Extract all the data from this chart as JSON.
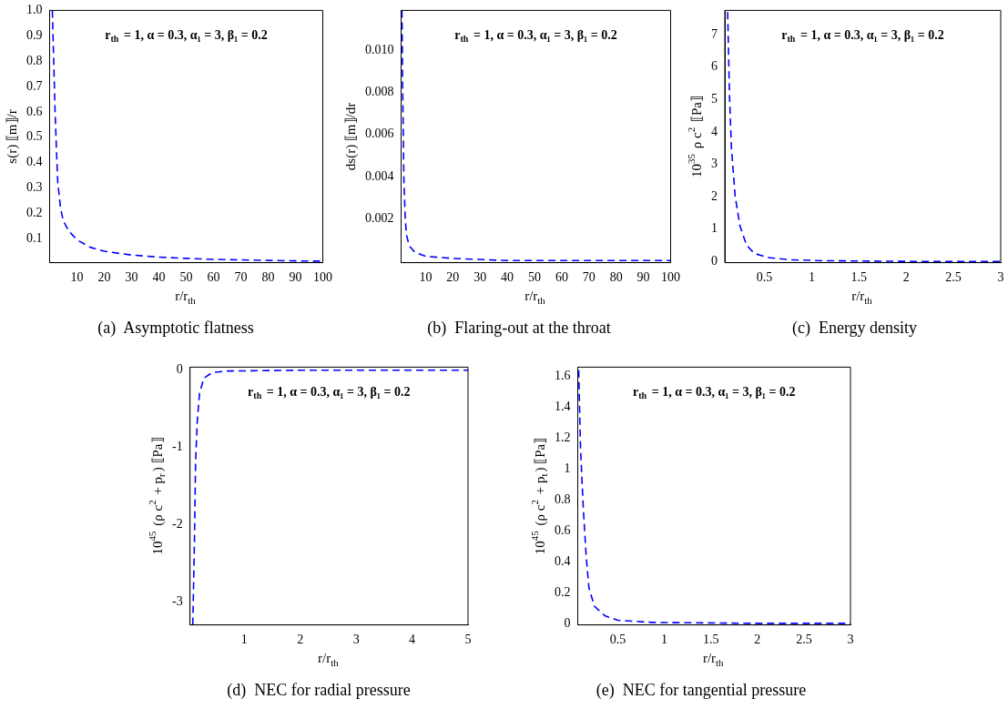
{
  "chart_data": [
    {
      "type": "line",
      "title": "(a)  Asymptotic flatness",
      "xlabel": "r/r$_{th}$",
      "ylabel": "s(r) ⟦m⟧/r",
      "annotations": [
        "r$_{th}$ = 1, α = 0.3, α₁ = 3, β₁ = 0.2"
      ],
      "x": [
        1,
        1.5,
        2,
        2.5,
        3,
        4,
        5,
        7,
        10,
        15,
        20,
        30,
        40,
        50,
        60,
        70,
        80,
        90,
        100
      ],
      "series": [
        {
          "color": "#0000ff",
          "values": [
            1.0,
            0.8,
            0.6,
            0.45,
            0.32,
            0.22,
            0.17,
            0.13,
            0.095,
            0.065,
            0.05,
            0.035,
            0.027,
            0.022,
            0.018,
            0.016,
            0.014,
            0.012,
            0.011
          ]
        }
      ],
      "xlim": [
        0,
        100
      ],
      "xticks": [
        10,
        20,
        30,
        40,
        50,
        60,
        70,
        80,
        90,
        100
      ],
      "ylim": [
        0.005,
        1.0
      ],
      "yticks": [
        0.1,
        0.2,
        0.3,
        0.4,
        0.5,
        0.6,
        0.7,
        0.8,
        0.9,
        {
          "value": 1,
          "label": "1.0"
        }
      ],
      "grid": false,
      "legend": false,
      "marker": "none",
      "line_style": "dashed"
    },
    {
      "type": "line",
      "title": "(b)  Flaring-out at the throat",
      "xlabel": "r/r$_{th}$",
      "ylabel": "ds(r) ⟦m⟧/dr",
      "annotations": [
        "r$_{th}$ = 1, α = 0.3, α₁ = 3, β₁ = 0.2"
      ],
      "x": [
        1.3,
        1.6,
        2,
        2.5,
        3,
        4,
        6,
        10,
        20,
        40,
        100
      ],
      "series": [
        {
          "color": "#0000ff",
          "values": [
            0.0119,
            0.008,
            0.004,
            0.002,
            0.0012,
            0.0007,
            0.0004,
            0.0002,
            0.0001,
            0,
            0
          ]
        }
      ],
      "xlim": [
        1,
        100
      ],
      "xticks": [
        10,
        20,
        30,
        40,
        50,
        60,
        70,
        80,
        90,
        100
      ],
      "ylim": [
        -0.0001,
        0.0119
      ],
      "yticks": [
        {
          "value": 0.002,
          "label": "0.002"
        },
        {
          "value": 0.004,
          "label": "0.004"
        },
        {
          "value": 0.006,
          "label": "0.006"
        },
        {
          "value": 0.008,
          "label": "0.008"
        },
        {
          "value": 0.01,
          "label": "0.010"
        }
      ],
      "grid": false,
      "legend": false,
      "marker": "none",
      "line_style": "dashed"
    },
    {
      "type": "line",
      "title": "(c)  Energy density",
      "xlabel": "r/r$_{th}$",
      "ylabel": "10$^{35}$ ρ c$^{2}$ ⟦Pa⟧",
      "annotations": [
        "r$_{th}$ = 1, α = 0.3, α₁ = 3, β₁ = 0.2"
      ],
      "x": [
        0.11,
        0.13,
        0.15,
        0.19,
        0.24,
        0.31,
        0.39,
        0.53,
        0.77,
        1.12,
        2,
        3
      ],
      "series": [
        {
          "color": "#0000ff",
          "values": [
            7.7,
            5.1,
            3.5,
            2.0,
            1.1,
            0.5,
            0.25,
            0.12,
            0.05,
            0.02,
            0,
            0
          ]
        }
      ],
      "xlim": [
        0.08,
        3
      ],
      "xticks": [
        0.5,
        1,
        1.5,
        2,
        2.5,
        3
      ],
      "ylim": [
        -0.04,
        7.75
      ],
      "yticks": [
        0,
        1,
        2,
        3,
        4,
        5,
        6,
        7
      ],
      "grid": false,
      "legend": false,
      "marker": "none",
      "line_style": "dashed"
    },
    {
      "type": "line",
      "title": "(d)  NEC for radial pressure",
      "xlabel": "r/r$_{th}$",
      "ylabel": "10$^{45}$ (ρ c$^{2}$ + p$_{r}$) ⟦Pa⟧",
      "annotations": [
        "r$_{th}$ = 1, α = 0.3, α₁ = 3, β₁ = 0.2"
      ],
      "x": [
        0.08,
        0.11,
        0.13,
        0.16,
        0.2,
        0.28,
        0.43,
        0.71,
        2,
        5
      ],
      "series": [
        {
          "color": "#0000ff",
          "values": [
            -3.3,
            -2.18,
            -1.18,
            -0.66,
            -0.3,
            -0.1,
            -0.03,
            -0.01,
            0,
            0
          ]
        }
      ],
      "xlim": [
        0.03,
        5
      ],
      "xticks": [
        1,
        2,
        3,
        4,
        5
      ],
      "ylim": [
        -3.3,
        0.04
      ],
      "yticks": [
        -3,
        -2,
        -1,
        0
      ],
      "grid": false,
      "legend": false,
      "marker": "none",
      "line_style": "dashed"
    },
    {
      "type": "line",
      "title": "(e)  NEC for tangential pressure",
      "xlabel": "r/r$_{th}$",
      "ylabel": "10$^{45}$ (ρ c$^{2}$ + p$_{t}$) ⟦Pa⟧",
      "annotations": [
        "r$_{th}$ = 1, α = 0.3, α₁ = 3, β₁ = 0.2"
      ],
      "x": [
        0.08,
        0.1,
        0.13,
        0.16,
        0.19,
        0.25,
        0.36,
        0.5,
        0.87,
        2,
        3
      ],
      "series": [
        {
          "color": "#0000ff",
          "values": [
            1.64,
            1.13,
            0.74,
            0.44,
            0.23,
            0.11,
            0.05,
            0.02,
            0.006,
            0,
            0
          ]
        }
      ],
      "xlim": [
        0.07,
        3
      ],
      "xticks": [
        0.5,
        1,
        1.5,
        2,
        2.5,
        3
      ],
      "ylim": [
        -0.01,
        1.66
      ],
      "yticks": [
        0,
        0.2,
        0.4,
        0.6,
        0.8,
        1,
        1.2,
        1.4,
        1.6
      ],
      "grid": false,
      "legend": false,
      "marker": "none",
      "line_style": "dashed"
    }
  ]
}
